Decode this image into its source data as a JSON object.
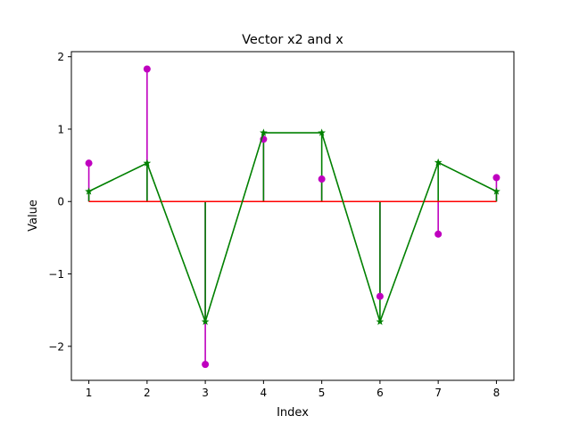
{
  "chart_data": {
    "type": "line",
    "title": "Vector x2 and x",
    "xlabel": "Index",
    "ylabel": "Value",
    "x": [
      1,
      2,
      3,
      4,
      5,
      6,
      7,
      8
    ],
    "xlim": [
      0.7,
      8.3
    ],
    "ylim": [
      -2.47,
      2.07
    ],
    "xticks": [
      1,
      2,
      3,
      4,
      5,
      6,
      7,
      8
    ],
    "yticks": [
      -2,
      -1,
      0,
      1,
      2
    ],
    "ytick_labels": [
      "−2",
      "−1",
      "0",
      "1",
      "2"
    ],
    "grid": false,
    "legend": "none",
    "baseline": {
      "value": 0,
      "color": "#ff0000"
    },
    "series": [
      {
        "style": "stem",
        "marker": "circle",
        "color": "#bf00bf",
        "values": [
          0.53,
          1.83,
          -2.25,
          0.86,
          0.31,
          -1.31,
          -0.45,
          0.33
        ]
      },
      {
        "style": "stem+line",
        "marker": "star",
        "color": "#008000",
        "values": [
          0.14,
          0.53,
          -1.66,
          0.95,
          0.95,
          -1.66,
          0.54,
          0.14
        ]
      }
    ]
  }
}
